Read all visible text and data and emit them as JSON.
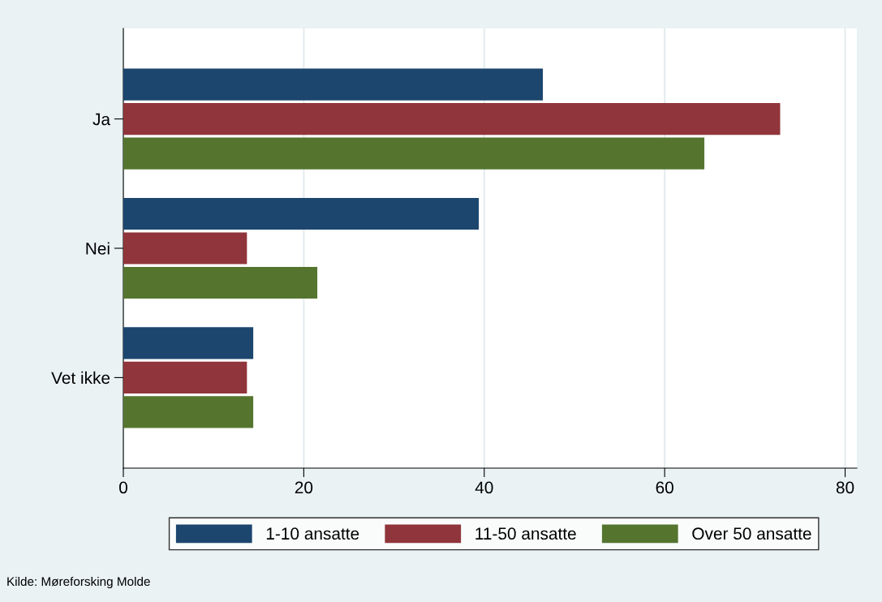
{
  "chart_data": {
    "type": "bar",
    "orientation": "horizontal",
    "categories": [
      "Ja",
      "Nei",
      "Vet ikke"
    ],
    "series": [
      {
        "name": "1-10 ansatte",
        "color": "#1c466e",
        "values": [
          46.5,
          39.4,
          14.4
        ]
      },
      {
        "name": "11-50 ansatte",
        "color": "#90353b",
        "values": [
          72.8,
          13.7,
          13.7
        ]
      },
      {
        "name": "Over 50 ansatte",
        "color": "#55752f",
        "values": [
          64.4,
          21.5,
          14.4
        ]
      }
    ],
    "xlim": [
      0,
      81.3
    ],
    "xticks": [
      0,
      20,
      40,
      60,
      80
    ],
    "grid": "x",
    "legend": "bottom",
    "annotations": [
      "Kilde: Møreforsking Molde"
    ]
  }
}
